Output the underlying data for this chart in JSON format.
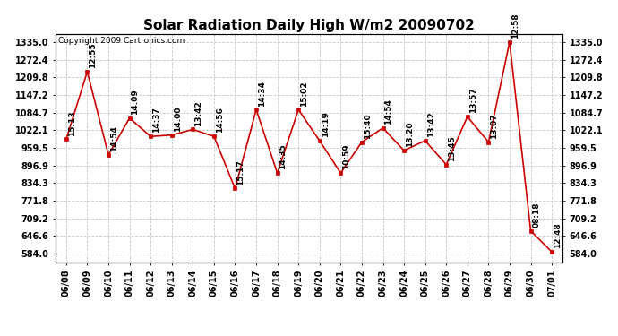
{
  "title": "Solar Radiation Daily High W/m2 20090702",
  "copyright": "Copyright 2009 Cartronics.com",
  "dates": [
    "06/08",
    "06/09",
    "06/10",
    "06/11",
    "06/12",
    "06/13",
    "06/14",
    "06/15",
    "06/16",
    "06/17",
    "06/18",
    "06/19",
    "06/20",
    "06/21",
    "06/22",
    "06/23",
    "06/24",
    "06/25",
    "06/26",
    "06/27",
    "06/28",
    "06/29",
    "06/30",
    "07/01"
  ],
  "values": [
    990,
    1230,
    935,
    1065,
    1000,
    1005,
    1025,
    1000,
    815,
    1095,
    870,
    1095,
    985,
    870,
    980,
    1030,
    950,
    985,
    900,
    1070,
    980,
    1335,
    665,
    590
  ],
  "labels": [
    "15:13",
    "12:55",
    "14:54",
    "14:09",
    "14:37",
    "14:00",
    "13:42",
    "14:56",
    "15:17",
    "14:34",
    "14:35",
    "15:02",
    "14:19",
    "10:59",
    "15:40",
    "14:54",
    "13:20",
    "13:42",
    "13:45",
    "13:57",
    "13:07",
    "12:58",
    "08:18",
    "12:48"
  ],
  "ylim_min": 554,
  "ylim_max": 1365,
  "yticks": [
    584.0,
    646.6,
    709.2,
    771.8,
    834.3,
    896.9,
    959.5,
    1022.1,
    1084.7,
    1147.2,
    1209.8,
    1272.4,
    1335.0
  ],
  "line_color": "#cc0000",
  "marker_color": "#cc0000",
  "bg_color": "#ffffff",
  "grid_color": "#c8c8c8",
  "title_fontsize": 11,
  "label_fontsize": 6.5,
  "copyright_fontsize": 6.5,
  "tick_fontsize": 7,
  "xtick_fontsize": 7
}
